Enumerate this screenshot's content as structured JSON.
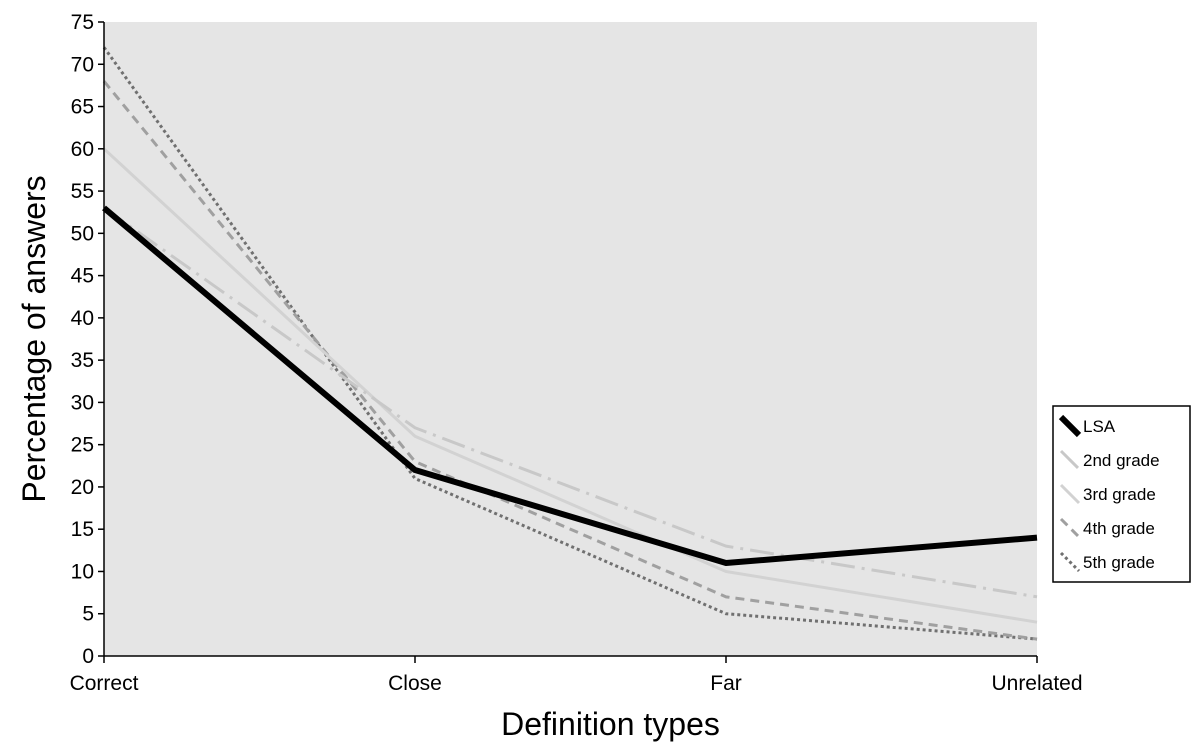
{
  "chart_data": {
    "type": "line",
    "title": "",
    "xlabel": "Definition types",
    "ylabel": "Percentage of answers",
    "categories": [
      "Correct",
      "Close",
      "Far",
      "Unrelated"
    ],
    "ylim": [
      0,
      75
    ],
    "yticks": [
      0,
      5,
      10,
      15,
      20,
      25,
      30,
      35,
      40,
      45,
      50,
      55,
      60,
      65,
      70,
      75
    ],
    "grid": false,
    "legend_position": "right",
    "plot_background": "#e5e5e5",
    "series": [
      {
        "name": "LSA",
        "values": [
          53,
          22,
          11,
          14
        ],
        "color": "#000000",
        "style": "solid-thick"
      },
      {
        "name": "2nd grade",
        "values": [
          53,
          27,
          13,
          7
        ],
        "color": "#c8c8c8",
        "style": "dash-dot"
      },
      {
        "name": "3rd grade",
        "values": [
          60,
          26,
          10,
          4
        ],
        "color": "#d2d2d2",
        "style": "solid"
      },
      {
        "name": "4th grade",
        "values": [
          68,
          23,
          7,
          2
        ],
        "color": "#a0a0a0",
        "style": "dash"
      },
      {
        "name": "5th grade",
        "values": [
          72,
          21,
          5,
          2
        ],
        "color": "#707070",
        "style": "dot"
      }
    ]
  }
}
